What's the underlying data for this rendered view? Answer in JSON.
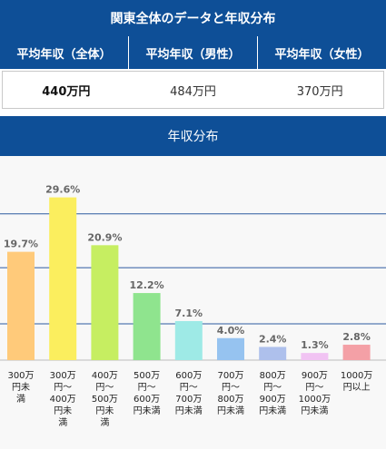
{
  "summary": {
    "title": "関東全体のデータと年収分布",
    "headers": [
      "平均年収（全体）",
      "平均年収（男性）",
      "平均年収（女性）"
    ],
    "values": [
      "440万円",
      "484万円",
      "370万円"
    ]
  },
  "chart_data": {
    "type": "bar",
    "title": "年収分布",
    "categories": [
      [
        "300万",
        "円未",
        "満"
      ],
      [
        "300万",
        "円～",
        "400万",
        "円未",
        "満"
      ],
      [
        "400万",
        "円～",
        "500万",
        "円未",
        "満"
      ],
      [
        "500万",
        "円～",
        "600万",
        "円未満"
      ],
      [
        "600万",
        "円～",
        "700万",
        "円未満"
      ],
      [
        "700万",
        "円～",
        "800万",
        "円未満"
      ],
      [
        "800万",
        "円～",
        "900万",
        "円未満"
      ],
      [
        "900万",
        "円～",
        "1000万",
        "円未満"
      ],
      [
        "1000万",
        "円以上"
      ]
    ],
    "values": [
      19.7,
      29.6,
      20.9,
      12.2,
      7.1,
      4.0,
      2.4,
      1.3,
      2.8
    ],
    "value_labels": [
      "19.7%",
      "29.6%",
      "20.9%",
      "12.2%",
      "7.1%",
      "4.0%",
      "2.4%",
      "1.3%",
      "2.8%"
    ],
    "colors": [
      "#ffca7a",
      "#fbee5e",
      "#c6ee61",
      "#8fe48e",
      "#9eeae6",
      "#96c3f0",
      "#aec0ec",
      "#f1c3f3",
      "#f4a0a6"
    ],
    "ylim": [
      0,
      33
    ],
    "grid": true,
    "gridline_values": [
      6.6,
      16.8,
      26.6
    ]
  }
}
